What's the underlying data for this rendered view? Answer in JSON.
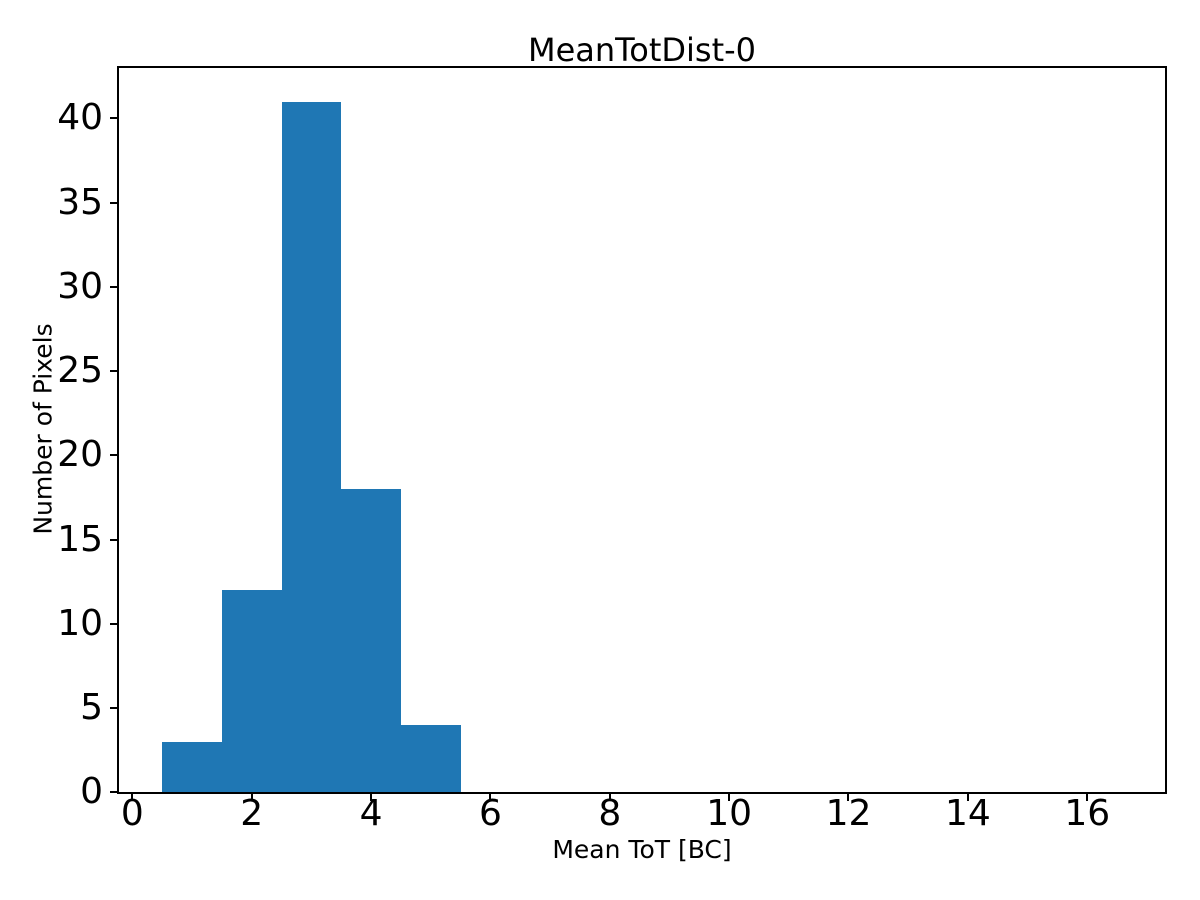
{
  "figure": {
    "background": "#ffffff",
    "text_color": "#000000"
  },
  "chart_data": {
    "type": "bar",
    "subtype": "histogram",
    "title": "MeanTotDist-0",
    "xlabel": "Mean ToT [BC]",
    "ylabel": "Number of Pixels",
    "bin_edges": [
      0.5,
      1.5,
      2.5,
      3.5,
      4.5,
      5.5
    ],
    "values": [
      3,
      12,
      41,
      18,
      4
    ],
    "xticks": [
      0,
      2,
      4,
      6,
      8,
      10,
      12,
      14,
      16
    ],
    "yticks": [
      0,
      5,
      10,
      15,
      20,
      25,
      30,
      35,
      40
    ],
    "xlim": [
      -0.24,
      17.32
    ],
    "ylim": [
      0,
      43.05
    ],
    "bar_color": "#1f77b4",
    "axis_color": "#000000",
    "grid": false,
    "legend_position": "none"
  }
}
